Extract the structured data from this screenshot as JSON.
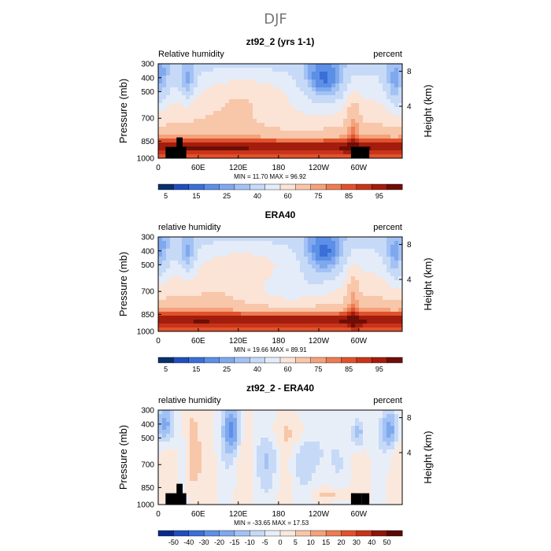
{
  "suptitle": "DJF",
  "chart_data": [
    {
      "type": "heatmap",
      "title": "zt92_2 (yrs 1-1)",
      "variable_label": "Relative humidity",
      "units_label": "percent",
      "ylabel": "Pressure (mb)",
      "ylabel_right": "Height (km)",
      "x_ticks": [
        "0",
        "60E",
        "120E",
        "180",
        "120W",
        "60W"
      ],
      "y_ticks": [
        "300",
        "400",
        "500",
        "700",
        "850",
        "1000"
      ],
      "y_right_ticks": [
        "8",
        "4"
      ],
      "min_max_text": "MIN =   11.70   MAX =   96.92",
      "min": 11.7,
      "max": 96.92,
      "colorbar_labels": [
        "5",
        "15",
        "25",
        "40",
        "60",
        "75",
        "85",
        "95"
      ],
      "colorbar_levels": [
        5,
        10,
        15,
        20,
        25,
        30,
        40,
        50,
        60,
        70,
        75,
        80,
        85,
        90,
        95
      ],
      "has_topography": true
    },
    {
      "type": "heatmap",
      "title": "ERA40",
      "variable_label": "relative humidity",
      "units_label": "percent",
      "ylabel": "Pressure (mb)",
      "ylabel_right": "Height (km)",
      "x_ticks": [
        "0",
        "60E",
        "120E",
        "180",
        "120W",
        "60W"
      ],
      "y_ticks": [
        "300",
        "400",
        "500",
        "700",
        "850",
        "1000"
      ],
      "y_right_ticks": [
        "8",
        "4"
      ],
      "min_max_text": "MIN =   19.66   MAX =   89.91",
      "min": 19.66,
      "max": 89.91,
      "colorbar_labels": [
        "5",
        "15",
        "25",
        "40",
        "60",
        "75",
        "85",
        "95"
      ],
      "colorbar_levels": [
        5,
        10,
        15,
        20,
        25,
        30,
        40,
        50,
        60,
        70,
        75,
        80,
        85,
        90,
        95
      ],
      "has_topography": false
    },
    {
      "type": "heatmap",
      "title": "zt92_2 - ERA40",
      "variable_label": "relative humidity",
      "units_label": "percent",
      "ylabel": "Pressure (mb)",
      "ylabel_right": "Height (km)",
      "x_ticks": [
        "0",
        "60E",
        "120E",
        "180",
        "120W",
        "60W"
      ],
      "y_ticks": [
        "300",
        "400",
        "500",
        "700",
        "850",
        "1000"
      ],
      "y_right_ticks": [
        "8",
        "4"
      ],
      "min_max_text": "MIN =  -33.65   MAX =   17.53",
      "min": -33.65,
      "max": 17.53,
      "colorbar_labels": [
        "-50",
        "-40",
        "-30",
        "-20",
        "-15",
        "-10",
        "-5",
        "0",
        "5",
        "10",
        "15",
        "20",
        "30",
        "40",
        "50"
      ],
      "colorbar_levels": [
        -50,
        -40,
        -30,
        -20,
        -15,
        -10,
        -5,
        0,
        5,
        10,
        15,
        20,
        30,
        40,
        50
      ],
      "has_topography": true
    }
  ],
  "colors": {
    "abs_scale": [
      "#08306b",
      "#1f4fbf",
      "#3a6fd8",
      "#5c8fe6",
      "#7fa8ee",
      "#a3c2f4",
      "#c6daf8",
      "#e3ecf8",
      "#fbe3d6",
      "#f8c6a9",
      "#f3a27c",
      "#ec7c52",
      "#e0522c",
      "#c8341a",
      "#a31d0d",
      "#6e0e05"
    ],
    "diff_scale": [
      "#0a2a8a",
      "#1f4fbf",
      "#3a6fd8",
      "#5c8fe6",
      "#7fa8ee",
      "#a3c2f4",
      "#c6daf8",
      "#e8eef8",
      "#fbe8dc",
      "#f8c6a9",
      "#f3a27c",
      "#ec7c52",
      "#e0522c",
      "#c8341a",
      "#8e1608",
      "#5a0a03"
    ],
    "topography": "#000000"
  }
}
